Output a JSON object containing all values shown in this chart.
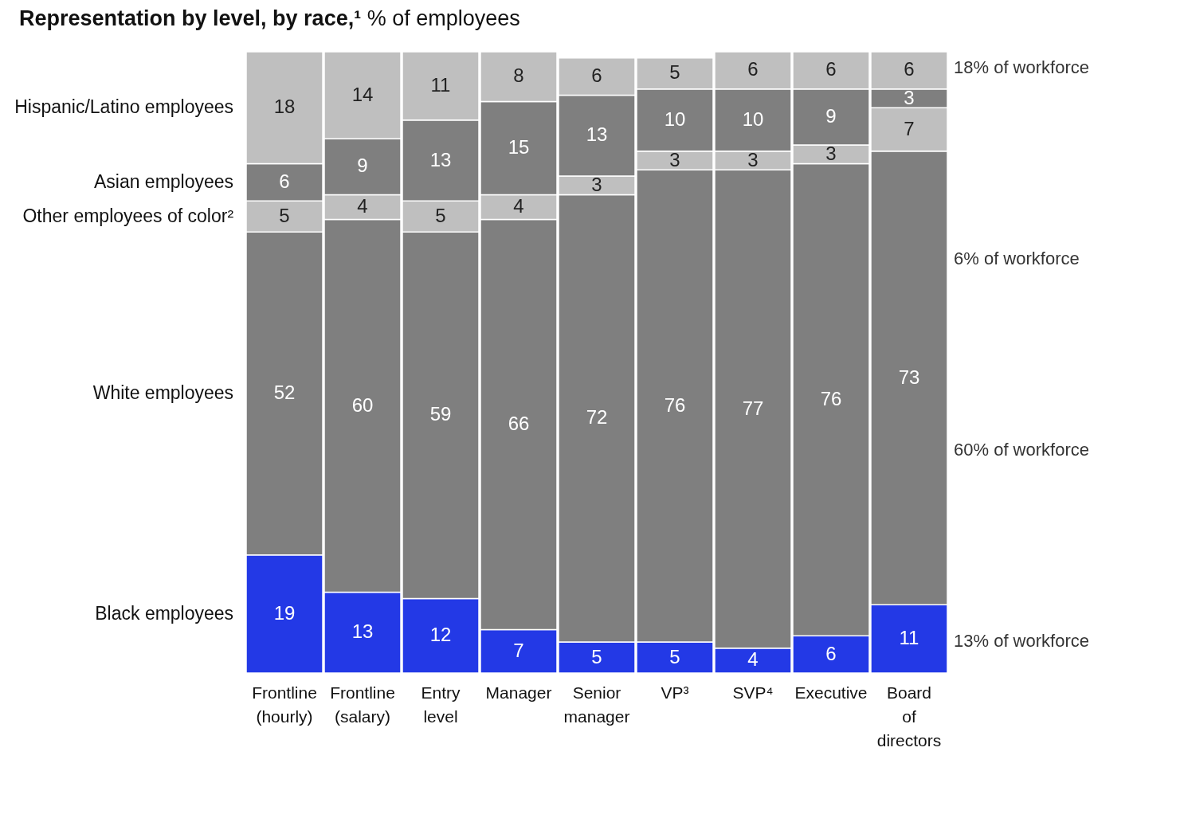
{
  "chart_data": {
    "type": "bar",
    "title": "Representation by level, by race,¹",
    "subtitle": "% of employees",
    "categories": [
      "Frontline (hourly)",
      "Frontline (salary)",
      "Entry level",
      "Manager",
      "Senior manager",
      "VP³",
      "SVP⁴",
      "Executive",
      "Board of directors"
    ],
    "stacked": true,
    "data_labels": true,
    "legend": "left",
    "tick_labels": "x",
    "ylim": [
      0,
      100
    ],
    "series": [
      {
        "name": "Black employees",
        "color": "#2339e6",
        "values": [
          19,
          13,
          12,
          7,
          5,
          5,
          4,
          6,
          11
        ]
      },
      {
        "name": "White employees",
        "color": "#7f7f7f",
        "values": [
          52,
          60,
          59,
          66,
          72,
          76,
          77,
          76,
          73
        ]
      },
      {
        "name": "Other employees of color²",
        "color": "#bfbfbf",
        "values": [
          5,
          4,
          5,
          4,
          3,
          3,
          3,
          3,
          7
        ]
      },
      {
        "name": "Asian employees",
        "color": "#7f7f7f",
        "values": [
          6,
          9,
          13,
          15,
          13,
          10,
          10,
          9,
          3
        ]
      },
      {
        "name": "Hispanic/Latino employees",
        "color": "#bfbfbf",
        "values": [
          18,
          14,
          11,
          8,
          6,
          5,
          6,
          6,
          6
        ]
      }
    ],
    "annotations": [
      "18% of workforce",
      "6% of workforce",
      "60% of workforce",
      "13% of workforce"
    ]
  }
}
